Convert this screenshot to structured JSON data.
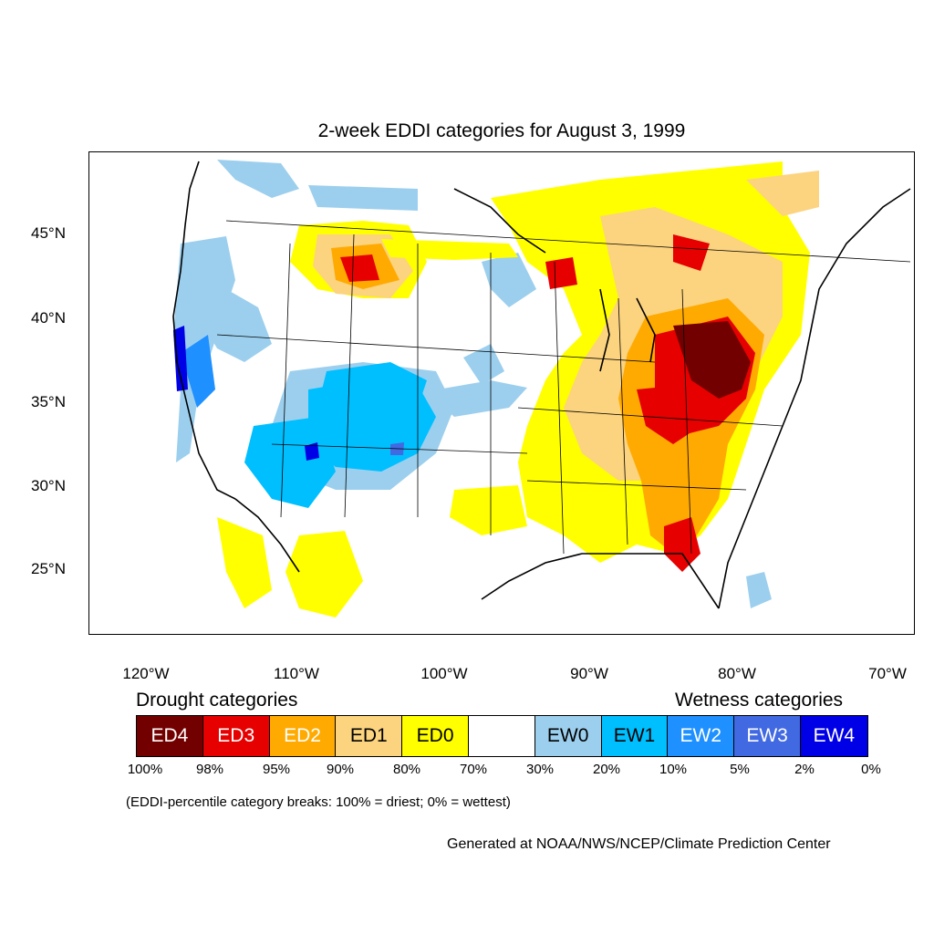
{
  "title": "2-week EDDI categories for August 3, 1999",
  "lat_labels": [
    "45°N",
    "40°N",
    "35°N",
    "30°N",
    "25°N"
  ],
  "lon_labels": [
    "120°W",
    "110°W",
    "100°W",
    "90°W",
    "80°W",
    "70°W"
  ],
  "legend": {
    "drought_heading": "Drought categories",
    "wetness_heading": "Wetness categories",
    "categories": [
      {
        "label": "ED4",
        "color": "#730000",
        "text_color": "#ffffff"
      },
      {
        "label": "ED3",
        "color": "#e60000",
        "text_color": "#ffffff"
      },
      {
        "label": "ED2",
        "color": "#ffaa00",
        "text_color": "#ffffff"
      },
      {
        "label": "ED1",
        "color": "#fcd37f",
        "text_color": "#000000"
      },
      {
        "label": "ED0",
        "color": "#ffff00",
        "text_color": "#000000"
      },
      {
        "label": "",
        "color": "#ffffff",
        "text_color": "#000000"
      },
      {
        "label": "EW0",
        "color": "#9ccfee",
        "text_color": "#000000"
      },
      {
        "label": "EW1",
        "color": "#00bfff",
        "text_color": "#000000"
      },
      {
        "label": "EW2",
        "color": "#1e90ff",
        "text_color": "#ffffff"
      },
      {
        "label": "EW3",
        "color": "#4169e1",
        "text_color": "#ffffff"
      },
      {
        "label": "EW4",
        "color": "#0000e6",
        "text_color": "#ffffff"
      }
    ],
    "percent_breaks": [
      "100%",
      "98%",
      "95%",
      "90%",
      "80%",
      "70%",
      "30%",
      "20%",
      "10%",
      "5%",
      "2%",
      "0%"
    ]
  },
  "note": "(EDDI-percentile category breaks: 100% = driest; 0% = wettest)",
  "credit": "Generated at NOAA/NWS/NCEP/Climate Prediction Center"
}
